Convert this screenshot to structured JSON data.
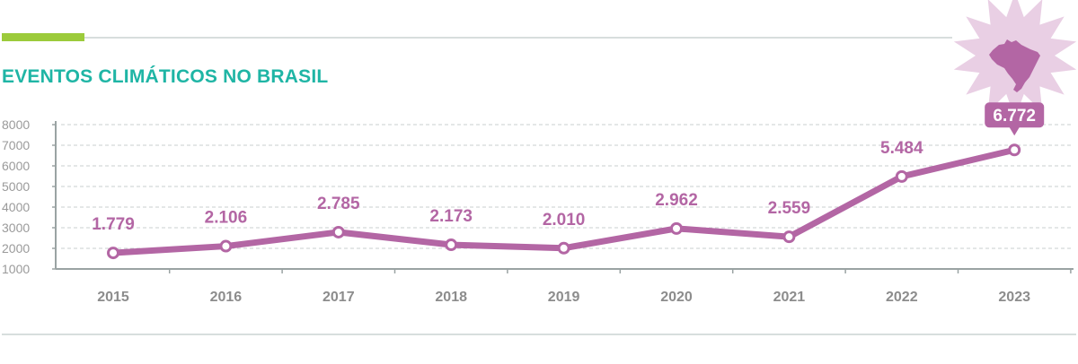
{
  "title": "EVENTOS CLIMÁTICOS NO BRASIL",
  "icon": "brazil-map-starburst-icon",
  "colors": {
    "accent": "#9ccb3b",
    "title": "#1fb5a5",
    "line": "#b366a4",
    "starburst": "#e9cfe4",
    "axis": "#9aa3a3"
  },
  "chart_data": {
    "type": "line",
    "title": "EVENTOS CLIMÁTICOS NO BRASIL",
    "xlabel": "",
    "ylabel": "",
    "categories": [
      "2015",
      "2016",
      "2017",
      "2018",
      "2019",
      "2020",
      "2021",
      "2022",
      "2023"
    ],
    "values": [
      1779,
      2106,
      2785,
      2173,
      2010,
      2962,
      2559,
      5484,
      6772
    ],
    "data_labels": [
      "1.779",
      "2.106",
      "2.785",
      "2.173",
      "2.010",
      "2.962",
      "2.559",
      "5.484",
      "6.772"
    ],
    "yticks": [
      "1000",
      "2000",
      "3000",
      "4000",
      "5000",
      "6000",
      "7000",
      "8000"
    ],
    "ylim": [
      1000,
      8000
    ],
    "grid": true,
    "highlight_index": 8
  }
}
